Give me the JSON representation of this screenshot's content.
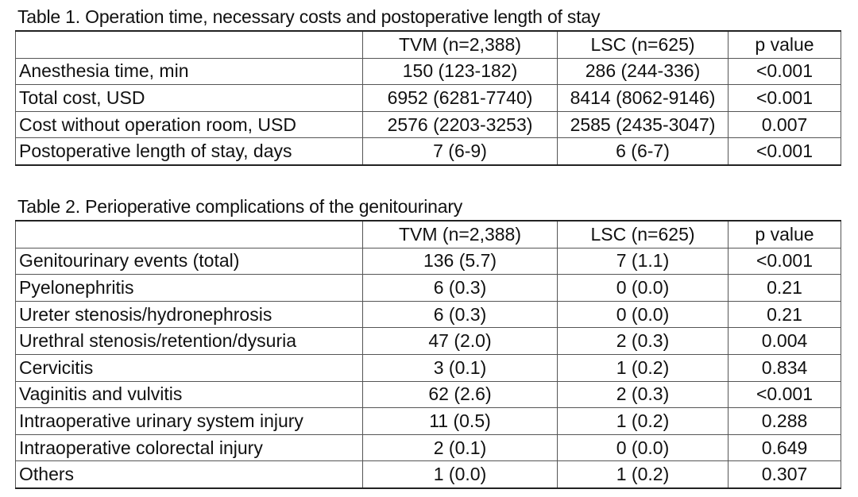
{
  "table1": {
    "caption": "Table 1. Operation time, necessary costs and postoperative length of stay",
    "headers": [
      "",
      "TVM (n=2,388)",
      "LSC (n=625)",
      "p value"
    ],
    "rows": [
      [
        "Anesthesia time, min",
        "150 (123-182)",
        "286 (244-336)",
        "<0.001"
      ],
      [
        "Total cost, USD",
        "6952 (6281-7740)",
        "8414 (8062-9146)",
        "<0.001"
      ],
      [
        "Cost without operation room, USD",
        "2576 (2203-3253)",
        "2585 (2435-3047)",
        "0.007"
      ],
      [
        "Postoperative length of stay, days",
        "7 (6-9)",
        "6 (6-7)",
        "<0.001"
      ]
    ]
  },
  "table2": {
    "caption": "Table 2. Perioperative complications of the genitourinary",
    "headers": [
      "",
      "TVM (n=2,388)",
      "LSC (n=625)",
      "p value"
    ],
    "rows": [
      [
        "Genitourinary events (total)",
        "136 (5.7)",
        "7 (1.1)",
        "<0.001"
      ],
      [
        "Pyelonephritis",
        "6 (0.3)",
        "0 (0.0)",
        "0.21"
      ],
      [
        "Ureter stenosis/hydronephrosis",
        "6 (0.3)",
        "0 (0.0)",
        "0.21"
      ],
      [
        "Urethral stenosis/retention/dysuria",
        "47 (2.0)",
        "2 (0.3)",
        "0.004"
      ],
      [
        "Cervicitis",
        "3 (0.1)",
        "1 (0.2)",
        "0.834"
      ],
      [
        "Vaginitis and vulvitis",
        "62 (2.6)",
        "2 (0.3)",
        "<0.001"
      ],
      [
        "Intraoperative urinary system injury",
        "11 (0.5)",
        "1 (0.2)",
        "0.288"
      ],
      [
        "Intraoperative colorectal injury",
        "2 (0.1)",
        "0 (0.0)",
        "0.649"
      ],
      [
        "Others",
        "1 (0.0)",
        "1 (0.2)",
        "0.307"
      ]
    ]
  }
}
